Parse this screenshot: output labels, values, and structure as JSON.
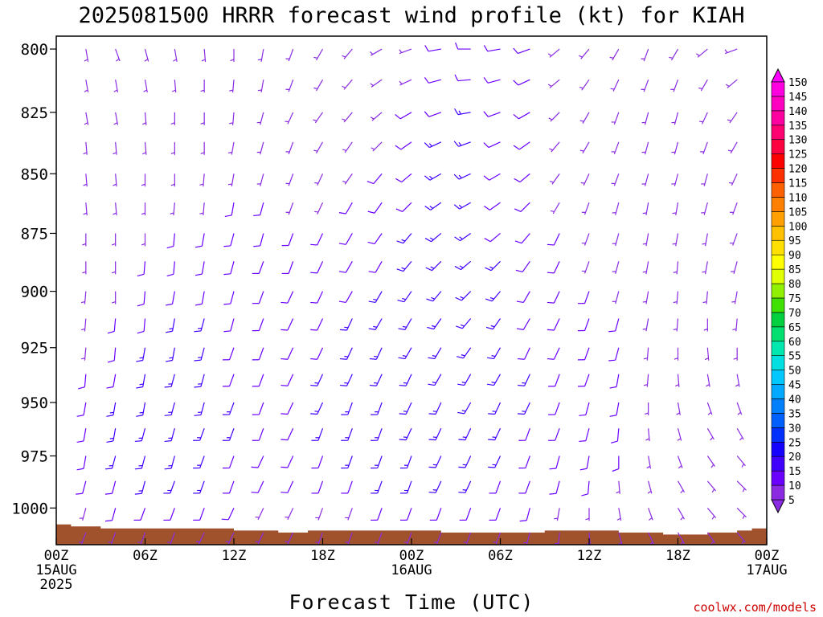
{
  "chart_data": {
    "type": "wind-barb-time-height",
    "title": "2025081500 HRRR forecast wind profile (kt) for KIAH",
    "xlabel": "Forecast Time (UTC)",
    "ylabel": "",
    "credit": "coolwx.com/models",
    "x_ticks": [
      {
        "hour": 0,
        "lines": [
          "00Z",
          "15AUG",
          "2025"
        ]
      },
      {
        "hour": 6,
        "lines": [
          "06Z"
        ]
      },
      {
        "hour": 12,
        "lines": [
          "12Z"
        ]
      },
      {
        "hour": 18,
        "lines": [
          "18Z"
        ]
      },
      {
        "hour": 24,
        "lines": [
          "00Z",
          "16AUG"
        ]
      },
      {
        "hour": 30,
        "lines": [
          "06Z"
        ]
      },
      {
        "hour": 36,
        "lines": [
          "12Z"
        ]
      },
      {
        "hour": 42,
        "lines": [
          "18Z"
        ]
      },
      {
        "hour": 48,
        "lines": [
          "00Z",
          "17AUG"
        ]
      }
    ],
    "x_range_hours": [
      0,
      48
    ],
    "y_ticks": [
      800,
      825,
      850,
      875,
      900,
      925,
      950,
      975,
      1000
    ],
    "y_range_hpa": [
      795,
      1018
    ],
    "y_scale": "log",
    "wind_speed_scale_kt": [
      5,
      10,
      15,
      20,
      25,
      30,
      35,
      40,
      45,
      50,
      55,
      60,
      65,
      70,
      75,
      80,
      85,
      90,
      95,
      100,
      105,
      110,
      115,
      120,
      125,
      130,
      135,
      140,
      145,
      150
    ],
    "wind_speed_colors": [
      "#8a2be2",
      "#6a00ff",
      "#4000ff",
      "#1400ff",
      "#0030ff",
      "#0060ff",
      "#0080ff",
      "#00a8ff",
      "#00c8ff",
      "#00e0e0",
      "#00e8b0",
      "#00e070",
      "#00d040",
      "#40e000",
      "#90f000",
      "#e0ff00",
      "#ffff00",
      "#ffe000",
      "#ffc000",
      "#ffa000",
      "#ff8000",
      "#ff6000",
      "#ff3000",
      "#ff0000",
      "#ff0040",
      "#ff0070",
      "#ff00a0",
      "#ff00c0",
      "#ff00e0",
      "#ff00ff"
    ],
    "surface_fill_color": "#a0522d",
    "surface_pressure_hpa": [
      1008,
      1009,
      1009,
      1010,
      1010,
      1010,
      1010,
      1010,
      1010,
      1010,
      1010,
      1010,
      1011,
      1011,
      1011,
      1012,
      1012,
      1011,
      1011,
      1011,
      1011,
      1011,
      1011,
      1011,
      1011,
      1011,
      1012,
      1012,
      1012,
      1012,
      1012,
      1012,
      1012,
      1011,
      1011,
      1011,
      1011,
      1011,
      1012,
      1012,
      1012,
      1013,
      1013,
      1013,
      1012,
      1012,
      1011,
      1010,
      1010
    ],
    "barb_levels_hpa": [
      800,
      812,
      825,
      837,
      850,
      862,
      875,
      887,
      900,
      912,
      925,
      937,
      950,
      962,
      975,
      987,
      1000,
      1012
    ],
    "barb_hours": [
      2,
      4,
      6,
      8,
      10,
      12,
      14,
      16,
      18,
      20,
      22,
      24,
      26,
      28,
      30,
      32,
      34,
      36,
      38,
      40,
      42,
      44,
      46,
      48
    ],
    "barb_speed_kt": [
      [
        5,
        5,
        5,
        5,
        5,
        5,
        5,
        5,
        5,
        5,
        5,
        5,
        10,
        10,
        10,
        10,
        5,
        5,
        5,
        5,
        5,
        5,
        5,
        5
      ],
      [
        5,
        5,
        5,
        5,
        5,
        5,
        5,
        5,
        5,
        5,
        5,
        5,
        10,
        10,
        10,
        10,
        5,
        5,
        5,
        5,
        5,
        5,
        5,
        5
      ],
      [
        5,
        5,
        5,
        5,
        5,
        5,
        5,
        5,
        5,
        5,
        5,
        10,
        10,
        15,
        10,
        10,
        5,
        5,
        5,
        5,
        5,
        5,
        5,
        5
      ],
      [
        5,
        5,
        5,
        5,
        5,
        5,
        5,
        5,
        5,
        5,
        5,
        10,
        15,
        15,
        10,
        10,
        5,
        5,
        5,
        5,
        5,
        5,
        5,
        5
      ],
      [
        5,
        5,
        5,
        5,
        5,
        5,
        5,
        5,
        5,
        5,
        10,
        10,
        15,
        15,
        10,
        10,
        5,
        5,
        5,
        5,
        5,
        5,
        5,
        5
      ],
      [
        5,
        5,
        5,
        5,
        5,
        10,
        10,
        5,
        5,
        10,
        10,
        10,
        15,
        15,
        10,
        10,
        5,
        5,
        5,
        5,
        5,
        5,
        5,
        5
      ],
      [
        5,
        5,
        5,
        10,
        10,
        10,
        10,
        10,
        10,
        10,
        10,
        15,
        15,
        15,
        10,
        10,
        10,
        5,
        5,
        5,
        5,
        5,
        5,
        5
      ],
      [
        5,
        5,
        10,
        10,
        10,
        10,
        10,
        10,
        10,
        10,
        10,
        15,
        15,
        15,
        15,
        10,
        10,
        5,
        5,
        5,
        5,
        5,
        5,
        5
      ],
      [
        5,
        5,
        10,
        10,
        10,
        10,
        10,
        10,
        10,
        10,
        15,
        15,
        15,
        15,
        15,
        10,
        10,
        10,
        5,
        5,
        5,
        5,
        5,
        5
      ],
      [
        5,
        10,
        10,
        15,
        15,
        10,
        10,
        10,
        10,
        15,
        15,
        15,
        15,
        15,
        15,
        10,
        10,
        10,
        10,
        5,
        5,
        5,
        5,
        5
      ],
      [
        5,
        10,
        15,
        15,
        15,
        10,
        10,
        10,
        10,
        15,
        15,
        15,
        15,
        15,
        15,
        10,
        10,
        10,
        10,
        5,
        5,
        5,
        5,
        5
      ],
      [
        10,
        10,
        15,
        15,
        15,
        10,
        10,
        10,
        15,
        15,
        15,
        15,
        15,
        15,
        15,
        15,
        10,
        10,
        10,
        5,
        5,
        5,
        5,
        5
      ],
      [
        10,
        15,
        15,
        15,
        15,
        15,
        10,
        10,
        15,
        15,
        15,
        15,
        15,
        15,
        15,
        15,
        10,
        10,
        10,
        5,
        5,
        5,
        5,
        5
      ],
      [
        10,
        15,
        15,
        15,
        15,
        15,
        10,
        10,
        15,
        15,
        15,
        15,
        15,
        15,
        15,
        10,
        10,
        10,
        10,
        5,
        5,
        5,
        5,
        5
      ],
      [
        10,
        15,
        15,
        15,
        15,
        10,
        10,
        10,
        10,
        15,
        15,
        15,
        15,
        15,
        15,
        10,
        10,
        10,
        10,
        5,
        5,
        5,
        5,
        5
      ],
      [
        10,
        10,
        15,
        15,
        15,
        10,
        10,
        10,
        10,
        10,
        15,
        15,
        15,
        15,
        10,
        10,
        10,
        10,
        5,
        5,
        5,
        5,
        5,
        5
      ],
      [
        5,
        10,
        10,
        10,
        10,
        10,
        5,
        5,
        5,
        5,
        10,
        10,
        10,
        10,
        10,
        10,
        5,
        5,
        5,
        5,
        5,
        5,
        5,
        5
      ],
      [
        5,
        5,
        5,
        5,
        5,
        5,
        5,
        5,
        5,
        5,
        5,
        5,
        5,
        5,
        5,
        5,
        5,
        5,
        5,
        5,
        5,
        5,
        5,
        5
      ]
    ],
    "barb_direction_deg": [
      [
        170,
        160,
        165,
        170,
        175,
        180,
        190,
        200,
        210,
        220,
        240,
        250,
        260,
        270,
        260,
        250,
        230,
        220,
        210,
        200,
        210,
        230,
        250,
        260
      ],
      [
        170,
        170,
        170,
        175,
        180,
        185,
        190,
        200,
        210,
        220,
        235,
        245,
        255,
        265,
        255,
        245,
        230,
        215,
        205,
        200,
        200,
        210,
        230,
        240
      ],
      [
        170,
        170,
        175,
        180,
        180,
        185,
        195,
        205,
        215,
        220,
        230,
        240,
        250,
        260,
        250,
        240,
        225,
        210,
        200,
        195,
        195,
        205,
        215,
        220
      ],
      [
        175,
        175,
        175,
        180,
        180,
        190,
        195,
        200,
        210,
        215,
        225,
        235,
        245,
        250,
        245,
        235,
        220,
        210,
        200,
        195,
        195,
        200,
        210,
        215
      ],
      [
        175,
        175,
        180,
        180,
        185,
        190,
        195,
        200,
        205,
        215,
        220,
        230,
        240,
        245,
        240,
        230,
        215,
        205,
        200,
        195,
        195,
        195,
        205,
        210
      ],
      [
        175,
        175,
        180,
        185,
        185,
        190,
        195,
        200,
        205,
        210,
        215,
        225,
        235,
        240,
        235,
        225,
        210,
        200,
        195,
        190,
        190,
        195,
        200,
        205
      ],
      [
        180,
        180,
        180,
        185,
        190,
        195,
        195,
        200,
        205,
        210,
        215,
        220,
        230,
        235,
        230,
        220,
        205,
        200,
        195,
        190,
        190,
        190,
        200,
        200
      ],
      [
        180,
        180,
        185,
        185,
        190,
        195,
        200,
        200,
        205,
        210,
        210,
        220,
        225,
        230,
        225,
        215,
        205,
        200,
        195,
        190,
        185,
        190,
        195,
        200
      ],
      [
        185,
        180,
        185,
        190,
        190,
        195,
        200,
        205,
        205,
        210,
        210,
        215,
        220,
        225,
        220,
        210,
        205,
        200,
        195,
        190,
        185,
        185,
        190,
        195
      ],
      [
        185,
        185,
        185,
        190,
        195,
        195,
        200,
        205,
        205,
        205,
        210,
        210,
        215,
        220,
        215,
        210,
        205,
        200,
        195,
        190,
        185,
        180,
        185,
        190
      ],
      [
        185,
        185,
        190,
        190,
        195,
        200,
        200,
        205,
        205,
        205,
        205,
        210,
        210,
        215,
        210,
        205,
        205,
        200,
        195,
        185,
        180,
        175,
        180,
        185
      ],
      [
        185,
        190,
        190,
        195,
        195,
        200,
        200,
        205,
        205,
        205,
        205,
        205,
        210,
        210,
        210,
        205,
        200,
        200,
        190,
        185,
        175,
        170,
        170,
        180
      ],
      [
        190,
        190,
        190,
        195,
        195,
        200,
        200,
        205,
        205,
        200,
        200,
        205,
        205,
        210,
        205,
        205,
        200,
        195,
        190,
        180,
        170,
        160,
        160,
        170
      ],
      [
        190,
        190,
        195,
        195,
        200,
        200,
        200,
        205,
        200,
        200,
        200,
        205,
        205,
        205,
        205,
        200,
        200,
        195,
        185,
        175,
        165,
        150,
        150,
        160
      ],
      [
        190,
        195,
        195,
        195,
        200,
        200,
        205,
        205,
        200,
        200,
        200,
        200,
        205,
        205,
        205,
        200,
        195,
        190,
        180,
        170,
        160,
        145,
        140,
        150
      ],
      [
        195,
        195,
        195,
        200,
        200,
        200,
        205,
        205,
        200,
        200,
        200,
        200,
        205,
        205,
        200,
        200,
        195,
        185,
        175,
        165,
        150,
        140,
        135,
        140
      ],
      [
        195,
        195,
        200,
        200,
        200,
        205,
        205,
        205,
        200,
        200,
        200,
        200,
        200,
        200,
        200,
        195,
        190,
        180,
        170,
        160,
        150,
        140,
        135,
        140
      ],
      [
        200,
        200,
        200,
        200,
        205,
        205,
        205,
        205,
        200,
        200,
        200,
        200,
        200,
        200,
        200,
        195,
        185,
        175,
        165,
        155,
        150,
        145,
        140,
        145
      ]
    ]
  }
}
